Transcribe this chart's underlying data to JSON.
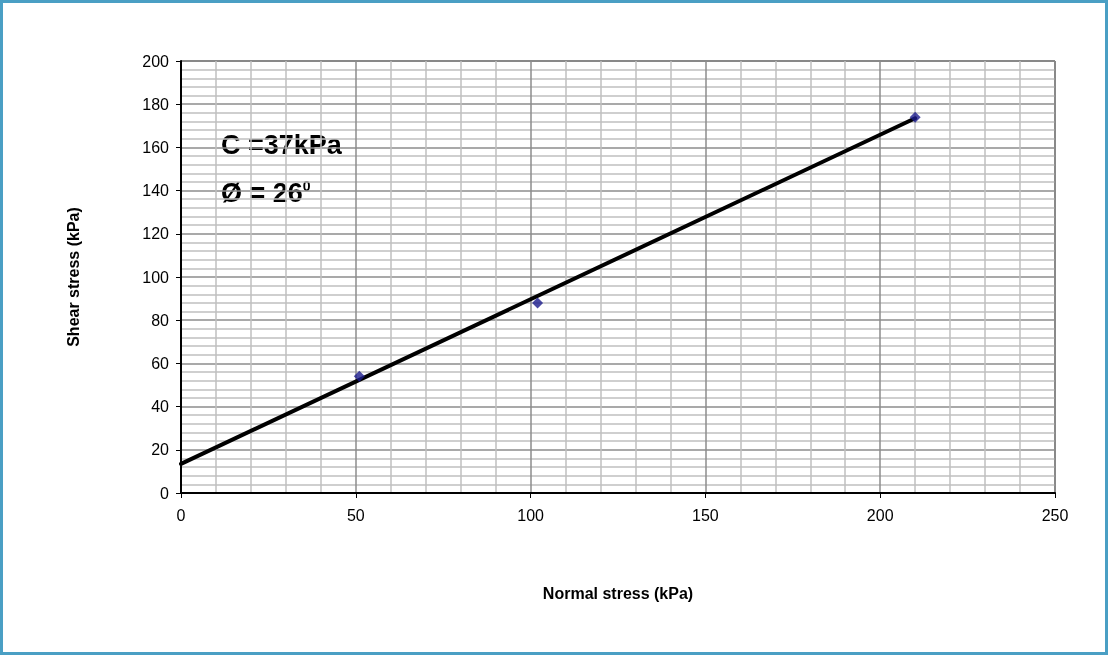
{
  "chart_data": {
    "type": "scatter",
    "xlabel": "Normal stress (kPa)",
    "ylabel": "Shear stress (kPa)",
    "xlim": [
      0,
      250
    ],
    "xticks": [
      0,
      50,
      100,
      150,
      200,
      250
    ],
    "ylim": [
      0,
      200
    ],
    "yticks": [
      0,
      20,
      40,
      60,
      80,
      100,
      120,
      140,
      160,
      180,
      200
    ],
    "grid": true,
    "annotations": [
      "C =37kPa",
      "Ø = 26$^{0}$"
    ],
    "series": [
      {
        "color": "#1c1c8c",
        "marker": "diamond",
        "x": [
          51,
          102,
          210
        ],
        "values": [
          54,
          88,
          174
        ]
      },
      {
        "type": "line",
        "color": "#000000",
        "marker": "none",
        "line_style": "solid",
        "x": [
          0,
          210
        ],
        "values": [
          13.5,
          173.5
        ]
      }
    ]
  }
}
